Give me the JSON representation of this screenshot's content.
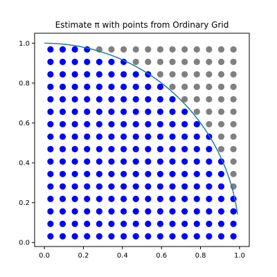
{
  "chart_data": {
    "type": "scatter",
    "title": "Estimate π with points from Ordinary Grid",
    "xlim": [
      -0.05,
      1.05
    ],
    "ylim": [
      -0.02,
      1.05
    ],
    "xticks": [
      0.0,
      0.2,
      0.4,
      0.6,
      0.8,
      1.0
    ],
    "yticks": [
      0.0,
      0.2,
      0.4,
      0.6,
      0.8,
      1.0
    ],
    "tick_labels_x": [
      "0.0",
      "0.2",
      "0.4",
      "0.6",
      "0.8",
      "1.0"
    ],
    "tick_labels_y": [
      "0.0",
      "0.2",
      "0.4",
      "0.6",
      "0.8",
      "1.0"
    ],
    "grid": false,
    "grid_points": {
      "n_per_axis": 16,
      "coordinates": [
        0.03125,
        0.09375,
        0.15625,
        0.21875,
        0.28125,
        0.34375,
        0.40625,
        0.46875,
        0.53125,
        0.59375,
        0.65625,
        0.71875,
        0.78125,
        0.84375,
        0.90625,
        0.96875
      ],
      "inside_color": "#0000ff",
      "outside_color": "#808080",
      "rule": "inside when x^2 + y^2 <= 1"
    },
    "curve": {
      "equation": "y = sqrt(1 - x^2)",
      "x_range": [
        0.0,
        0.99
      ],
      "color": "#1f77b4"
    }
  }
}
